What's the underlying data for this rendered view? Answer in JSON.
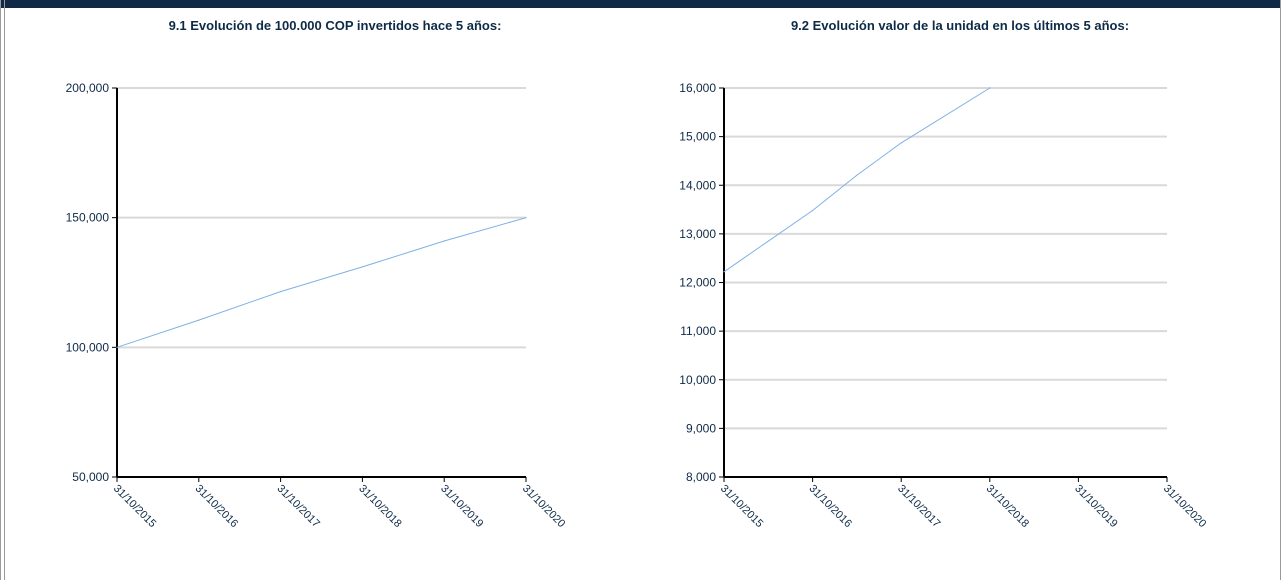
{
  "colors": {
    "header_bar": "#0e2a47",
    "text": "#0e2a47",
    "gridline": "#d9d9d9",
    "axis": "#000000",
    "series_line": "#7fb0e6"
  },
  "charts": {
    "left": {
      "title": "9.1 Evolución de 100.000 COP invertidos hace 5 años:"
    },
    "right": {
      "title": "9.2 Evolución valor de la unidad en los últimos 5 años:"
    }
  },
  "chart_data": [
    {
      "type": "line",
      "title": "9.1 Evolución de 100.000 COP invertidos hace 5 años:",
      "xlabel": "",
      "ylabel": "",
      "x_tick_labels": [
        "31/10/2015",
        "31/10/2016",
        "31/10/2017",
        "31/10/2018",
        "31/10/2019",
        "31/10/2020"
      ],
      "y_tick_labels": [
        "50,000",
        "100,000",
        "150,000",
        "200,000"
      ],
      "y_ticks": [
        50000,
        100000,
        150000,
        200000
      ],
      "ylim": [
        50000,
        200000
      ],
      "grid": true,
      "series": [
        {
          "x": [
            "31/10/2015",
            "31/10/2016",
            "31/10/2017",
            "31/10/2018",
            "31/10/2019",
            "31/10/2020"
          ],
          "values": [
            100000,
            110500,
            121500,
            131000,
            141000,
            150000
          ]
        }
      ]
    },
    {
      "type": "line",
      "title": "9.2 Evolución valor de la unidad en los últimos 5 años:",
      "xlabel": "",
      "ylabel": "",
      "x_tick_labels": [
        "31/10/2015",
        "31/10/2016",
        "31/10/2017",
        "31/10/2018",
        "31/10/2019",
        "31/10/2020"
      ],
      "y_tick_labels": [
        "8,000",
        "9,000",
        "10,000",
        "11,000",
        "12,000",
        "13,000",
        "14,000",
        "15,000",
        "16,000"
      ],
      "y_ticks": [
        8000,
        9000,
        10000,
        11000,
        12000,
        13000,
        14000,
        15000,
        16000
      ],
      "ylim": [
        8000,
        16000
      ],
      "grid": true,
      "series": [
        {
          "x": [
            "31/10/2015",
            "31/10/2016",
            "30/04/2017",
            "31/10/2017",
            "31/10/2018"
          ],
          "values": [
            12220,
            13480,
            14200,
            14870,
            16000
          ]
        }
      ]
    }
  ]
}
